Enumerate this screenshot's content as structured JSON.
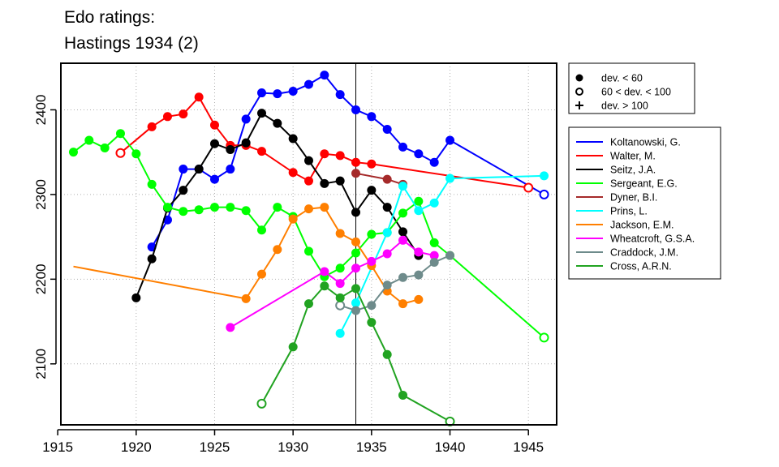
{
  "chart_data": {
    "type": "line",
    "title_lines": [
      "Edo ratings:",
      "Hastings 1934 (2)"
    ],
    "xlim": [
      1915.2,
      1946.8
    ],
    "ylim": [
      2028,
      2455
    ],
    "x_ticks": [
      1915,
      1920,
      1925,
      1930,
      1935,
      1940,
      1945
    ],
    "y_ticks": [
      2100,
      2200,
      2300,
      2400
    ],
    "grid": true,
    "reference_line_x": 1934,
    "marker_legend": [
      {
        "marker": "filled",
        "label": "dev. < 60"
      },
      {
        "marker": "open",
        "label": "60 < dev. < 100"
      },
      {
        "marker": "plus",
        "label": "dev. > 100"
      }
    ],
    "series": [
      {
        "name": "Koltanowski, G.",
        "color": "#0000ff",
        "points": [
          [
            1921,
            2238,
            "filled"
          ],
          [
            1922,
            2270,
            "filled"
          ],
          [
            1923,
            2330,
            "filled"
          ],
          [
            1924,
            2330,
            "filled"
          ],
          [
            1925,
            2318,
            "filled"
          ],
          [
            1926,
            2330,
            "filled"
          ],
          [
            1927,
            2389,
            "filled"
          ],
          [
            1928,
            2420,
            "filled"
          ],
          [
            1929,
            2419,
            "filled"
          ],
          [
            1930,
            2422,
            "filled"
          ],
          [
            1931,
            2430,
            "filled"
          ],
          [
            1932,
            2441,
            "filled"
          ],
          [
            1933,
            2418,
            "filled"
          ],
          [
            1934,
            2400,
            "filled"
          ],
          [
            1935,
            2392,
            "filled"
          ],
          [
            1936,
            2377,
            "filled"
          ],
          [
            1937,
            2356,
            "filled"
          ],
          [
            1938,
            2348,
            "filled"
          ],
          [
            1939,
            2338,
            "filled"
          ],
          [
            1940,
            2364,
            "filled"
          ],
          [
            1946,
            2300,
            "open"
          ]
        ]
      },
      {
        "name": "Walter, M.",
        "color": "#ff0000",
        "points": [
          [
            1919,
            2349,
            "open"
          ],
          [
            1921,
            2380,
            "filled"
          ],
          [
            1922,
            2392,
            "filled"
          ],
          [
            1923,
            2395,
            "filled"
          ],
          [
            1924,
            2415,
            "filled"
          ],
          [
            1925,
            2382,
            "filled"
          ],
          [
            1926,
            2358,
            "filled"
          ],
          [
            1927,
            2358,
            "filled"
          ],
          [
            1928,
            2351,
            "filled"
          ],
          [
            1930,
            2326,
            "filled"
          ],
          [
            1931,
            2316,
            "filled"
          ],
          [
            1932,
            2348,
            "filled"
          ],
          [
            1933,
            2346,
            "filled"
          ],
          [
            1934,
            2338,
            "filled"
          ],
          [
            1935,
            2336,
            "filled"
          ],
          [
            1945,
            2308,
            "open"
          ]
        ]
      },
      {
        "name": "Seitz, J.A.",
        "color": "#000000",
        "points": [
          [
            1920,
            2178,
            "filled"
          ],
          [
            1921,
            2224,
            "filled"
          ],
          [
            1922,
            2284,
            "filled"
          ],
          [
            1923,
            2305,
            "filled"
          ],
          [
            1924,
            2330,
            "filled"
          ],
          [
            1925,
            2360,
            "filled"
          ],
          [
            1926,
            2353,
            "filled"
          ],
          [
            1927,
            2361,
            "filled"
          ],
          [
            1928,
            2396,
            "filled"
          ],
          [
            1929,
            2384,
            "filled"
          ],
          [
            1930,
            2366,
            "filled"
          ],
          [
            1931,
            2340,
            "filled"
          ],
          [
            1932,
            2313,
            "filled"
          ],
          [
            1933,
            2316,
            "filled"
          ],
          [
            1934,
            2279,
            "filled"
          ],
          [
            1935,
            2305,
            "filled"
          ],
          [
            1936,
            2285,
            "filled"
          ],
          [
            1937,
            2256,
            "filled"
          ],
          [
            1938,
            2228,
            "filled"
          ]
        ]
      },
      {
        "name": "Sergeant, E.G.",
        "color": "#00ff00",
        "points": [
          [
            1916,
            2350,
            "filled"
          ],
          [
            1917,
            2364,
            "filled"
          ],
          [
            1918,
            2355,
            "filled"
          ],
          [
            1919,
            2372,
            "filled"
          ],
          [
            1920,
            2348,
            "filled"
          ],
          [
            1921,
            2312,
            "filled"
          ],
          [
            1922,
            2285,
            "filled"
          ],
          [
            1923,
            2280,
            "filled"
          ],
          [
            1924,
            2282,
            "filled"
          ],
          [
            1925,
            2285,
            "filled"
          ],
          [
            1926,
            2285,
            "filled"
          ],
          [
            1927,
            2281,
            "filled"
          ],
          [
            1928,
            2258,
            "filled"
          ],
          [
            1929,
            2285,
            "filled"
          ],
          [
            1930,
            2274,
            "filled"
          ],
          [
            1931,
            2233,
            "filled"
          ],
          [
            1932,
            2203,
            "filled"
          ],
          [
            1933,
            2213,
            "filled"
          ],
          [
            1934,
            2231,
            "filled"
          ],
          [
            1935,
            2253,
            "filled"
          ],
          [
            1936,
            2255,
            "filled"
          ],
          [
            1937,
            2278,
            "filled"
          ],
          [
            1938,
            2292,
            "filled"
          ],
          [
            1939,
            2243,
            "filled"
          ],
          [
            1940,
            2228,
            "filled"
          ],
          [
            1946,
            2131,
            "open"
          ]
        ]
      },
      {
        "name": "Dyner, B.I.",
        "color": "#a52a2a",
        "points": [
          [
            1934,
            2325,
            "filled"
          ],
          [
            1936,
            2318,
            "filled"
          ],
          [
            1937,
            2312,
            "filled"
          ]
        ]
      },
      {
        "name": "Prins, L.",
        "color": "#00ffff",
        "points": [
          [
            1933,
            2136,
            "filled"
          ],
          [
            1934,
            2172,
            "filled"
          ],
          [
            1936,
            2255,
            "filled"
          ],
          [
            1937,
            2310,
            "filled"
          ],
          [
            1938,
            2281,
            "filled"
          ],
          [
            1939,
            2290,
            "filled"
          ],
          [
            1940,
            2319,
            "filled"
          ],
          [
            1946,
            2322,
            "filled"
          ]
        ]
      },
      {
        "name": "Jackson, E.M.",
        "color": "#ff7f00",
        "points": [
          [
            1916,
            2215,
            "none"
          ],
          [
            1927,
            2177,
            "filled"
          ],
          [
            1928,
            2206,
            "filled"
          ],
          [
            1929,
            2235,
            "filled"
          ],
          [
            1930,
            2271,
            "filled"
          ],
          [
            1931,
            2283,
            "filled"
          ],
          [
            1932,
            2285,
            "filled"
          ],
          [
            1933,
            2254,
            "filled"
          ],
          [
            1934,
            2244,
            "filled"
          ],
          [
            1935,
            2216,
            "filled"
          ],
          [
            1936,
            2186,
            "filled"
          ],
          [
            1937,
            2171,
            "filled"
          ],
          [
            1938,
            2176,
            "filled"
          ]
        ]
      },
      {
        "name": "Wheatcroft, G.S.A.",
        "color": "#ff00ff",
        "points": [
          [
            1926,
            2143,
            "filled"
          ],
          [
            1932,
            2209,
            "filled"
          ],
          [
            1933,
            2195,
            "filled"
          ],
          [
            1934,
            2213,
            "filled"
          ],
          [
            1935,
            2221,
            "filled"
          ],
          [
            1936,
            2230,
            "filled"
          ],
          [
            1937,
            2246,
            "filled"
          ],
          [
            1938,
            2232,
            "filled"
          ],
          [
            1939,
            2228,
            "filled"
          ]
        ]
      },
      {
        "name": "Craddock, J.M.",
        "color": "#6e8b8b",
        "points": [
          [
            1933,
            2169,
            "open"
          ],
          [
            1934,
            2163,
            "filled"
          ],
          [
            1935,
            2169,
            "filled"
          ],
          [
            1936,
            2193,
            "filled"
          ],
          [
            1937,
            2202,
            "filled"
          ],
          [
            1938,
            2205,
            "filled"
          ],
          [
            1939,
            2220,
            "filled"
          ],
          [
            1940,
            2228,
            "filled"
          ]
        ]
      },
      {
        "name": "Cross, A.R.N.",
        "color": "#21a321",
        "points": [
          [
            1928,
            2053,
            "open"
          ],
          [
            1930,
            2120,
            "filled"
          ],
          [
            1931,
            2171,
            "filled"
          ],
          [
            1932,
            2192,
            "filled"
          ],
          [
            1933,
            2178,
            "filled"
          ],
          [
            1934,
            2189,
            "filled"
          ],
          [
            1935,
            2149,
            "filled"
          ],
          [
            1936,
            2111,
            "filled"
          ],
          [
            1937,
            2063,
            "filled"
          ],
          [
            1940,
            2032,
            "open"
          ]
        ]
      }
    ]
  }
}
